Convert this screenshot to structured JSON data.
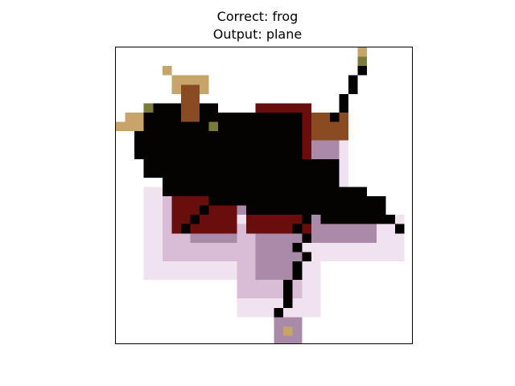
{
  "figure": {
    "correct_label": "Correct: frog",
    "output_label": "Output: plane"
  },
  "image": {
    "subject": "low-resolution pixelated insect (fly) on white background",
    "grid": "32x32 pixels",
    "palette": {
      "background": "#ffffff",
      "body": "#050202",
      "dark_red": "#6a0d0d",
      "brown": "#8a4a22",
      "tan": "#c7a56a",
      "wing_pink": "#d9bcd6",
      "wing_purple": "#a98aa8",
      "wing_light": "#f1e2f0",
      "olive": "#7a7a3a"
    }
  }
}
